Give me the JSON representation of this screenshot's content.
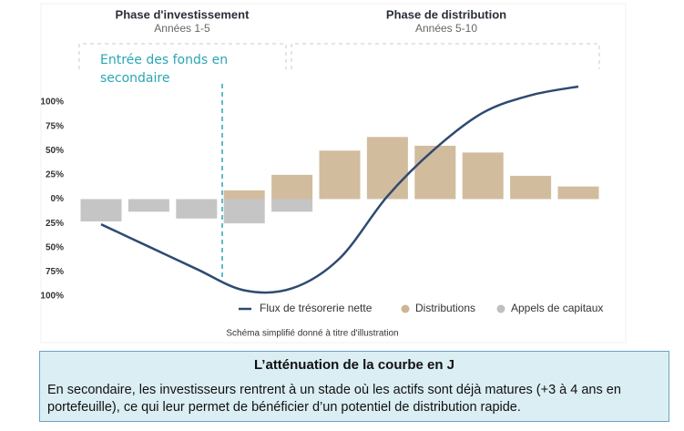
{
  "chart_data": {
    "type": "bar",
    "phases": [
      {
        "title": "Phase d'investissement",
        "subtitle": "Années 1-5"
      },
      {
        "title": "Phase de distribution",
        "subtitle": "Années 5-10"
      }
    ],
    "annotation": "Entrée des fonds en secondaire",
    "categories": [
      null,
      null,
      null,
      null,
      null,
      null,
      null,
      null,
      null,
      null,
      null
    ],
    "series": [
      {
        "name": "Flux de trésorerie nette",
        "type": "line",
        "color": "#2e4a72",
        "values": [
          -26,
          -49,
          -72,
          -94,
          -92,
          -61,
          3,
          52,
          89,
          107,
          116
        ]
      },
      {
        "name": "Distributions",
        "color": "#cdb594",
        "values": [
          null,
          null,
          null,
          9,
          25,
          50,
          64,
          55,
          48,
          24,
          13
        ]
      },
      {
        "name": "Appels de capitaux",
        "color": "#bfbfbf",
        "values": [
          -23,
          -13,
          -20,
          -25,
          -13,
          null,
          null,
          null,
          null,
          null,
          null
        ]
      }
    ],
    "ylim": [
      -100,
      100
    ],
    "yticks": [
      {
        "value": 100,
        "label": "100%"
      },
      {
        "value": 75,
        "label": "75%"
      },
      {
        "value": 50,
        "label": "50%"
      },
      {
        "value": 25,
        "label": "25%"
      },
      {
        "value": 0,
        "label": "0%"
      },
      {
        "value": -25,
        "label": "25%"
      },
      {
        "value": -50,
        "label": "50%"
      },
      {
        "value": -75,
        "label": "75%"
      },
      {
        "value": -100,
        "label": "100%"
      }
    ],
    "footnote": "Schéma simplifié donné à titre d'illustration"
  },
  "caption": {
    "title": "L’atténuation de la courbe en J",
    "text": "En secondaire, les investisseurs rentrent à un stade où les actifs sont déjà matures (+3 à 4 ans en portefeuille), ce qui leur permet de bénéficier d’un potentiel de distribution rapide."
  }
}
